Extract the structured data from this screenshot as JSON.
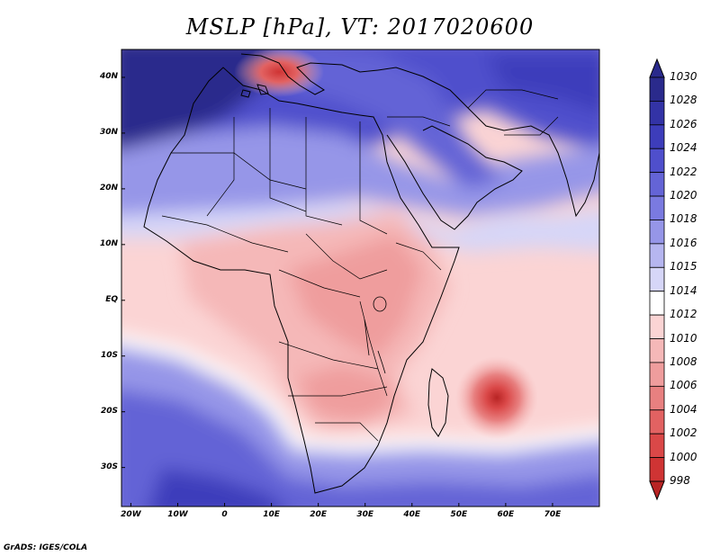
{
  "title": "MSLP [hPa], VT: 2017020600",
  "credit": "GrADS: IGES/COLA",
  "map": {
    "lon_range": [
      -22,
      80
    ],
    "lat_range": [
      -37,
      45
    ],
    "lat_ticks": [
      {
        "value": 40,
        "label": "40N"
      },
      {
        "value": 30,
        "label": "30N"
      },
      {
        "value": 20,
        "label": "20N"
      },
      {
        "value": 10,
        "label": "10N"
      },
      {
        "value": 0,
        "label": "EQ"
      },
      {
        "value": -10,
        "label": "10S"
      },
      {
        "value": -20,
        "label": "20S"
      },
      {
        "value": -30,
        "label": "30S"
      }
    ],
    "lon_ticks": [
      {
        "value": -20,
        "label": "20W"
      },
      {
        "value": -10,
        "label": "10W"
      },
      {
        "value": 0,
        "label": "0"
      },
      {
        "value": 10,
        "label": "10E"
      },
      {
        "value": 20,
        "label": "20E"
      },
      {
        "value": 30,
        "label": "30E"
      },
      {
        "value": 40,
        "label": "40E"
      },
      {
        "value": 50,
        "label": "50E"
      },
      {
        "value": 60,
        "label": "60E"
      },
      {
        "value": 70,
        "label": "70E"
      }
    ]
  },
  "colorbar": {
    "levels": [
      {
        "label": "1030",
        "color": "#2a2a8c"
      },
      {
        "label": "1028",
        "color": "#3333a6"
      },
      {
        "label": "1026",
        "color": "#3d3dbb"
      },
      {
        "label": "1024",
        "color": "#4f4fcc"
      },
      {
        "label": "1022",
        "color": "#6464d6"
      },
      {
        "label": "1020",
        "color": "#7a7ae0"
      },
      {
        "label": "1018",
        "color": "#9696e8"
      },
      {
        "label": "1016",
        "color": "#b6b6f0"
      },
      {
        "label": "1015",
        "color": "#d6d6f8"
      },
      {
        "label": "1014",
        "color": "#ffffff"
      },
      {
        "label": "1012",
        "color": "#fbd4d4"
      },
      {
        "label": "1010",
        "color": "#f5b8b8"
      },
      {
        "label": "1008",
        "color": "#ef9d9d"
      },
      {
        "label": "1006",
        "color": "#e88080"
      },
      {
        "label": "1004",
        "color": "#e26262"
      },
      {
        "label": "1002",
        "color": "#da4848"
      },
      {
        "label": "1000",
        "color": "#cf3434"
      },
      {
        "label": "998",
        "color": "#b82424"
      }
    ]
  }
}
